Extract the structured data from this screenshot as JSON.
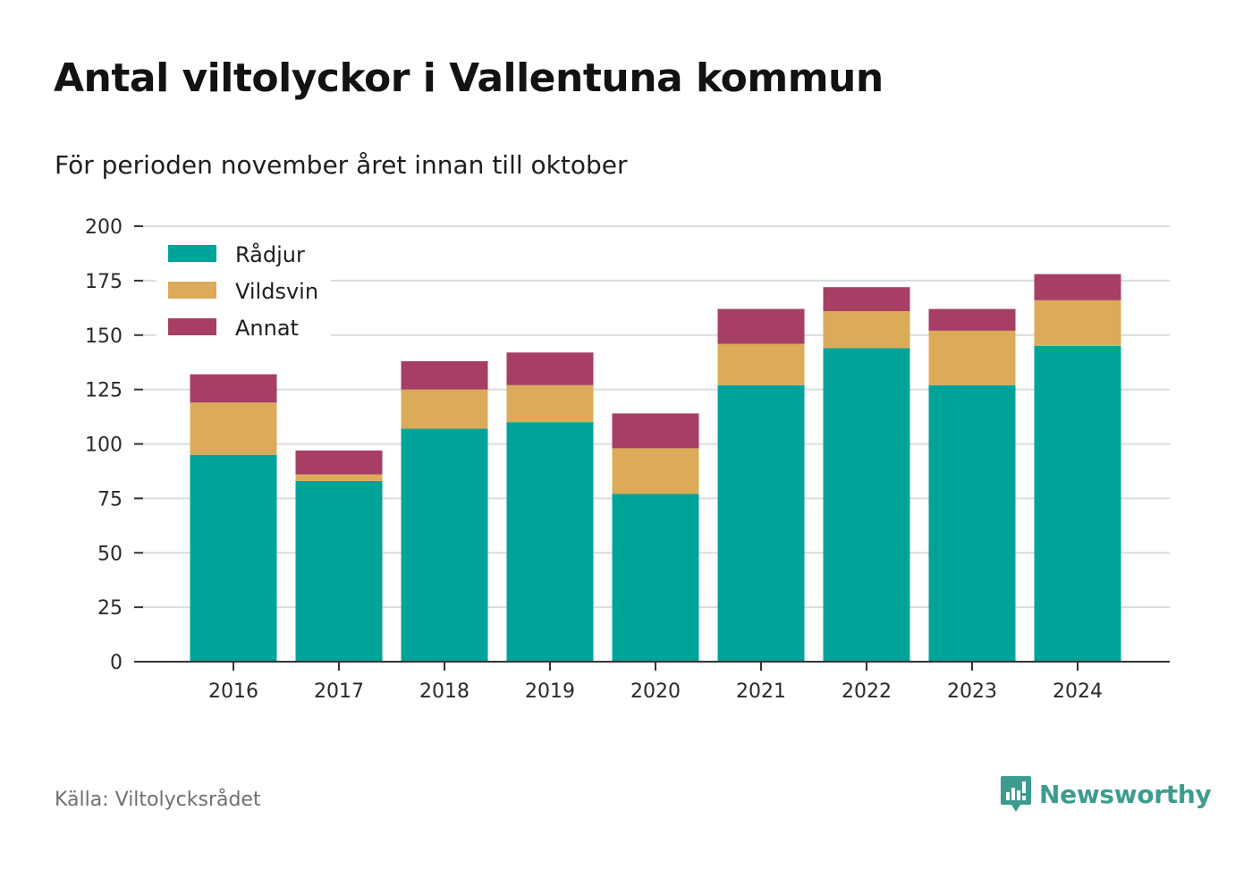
{
  "title": "Antal viltolyckor i Vallentuna kommun",
  "subtitle": "För perioden november året innan till oktober",
  "source": "Källa: Viltolycksrådet",
  "brand": {
    "name": "Newsworthy",
    "logo_icon": "newsworthy-logo-icon",
    "color": "#3d9c8f"
  },
  "chart_data": {
    "type": "bar",
    "stacked": true,
    "categories": [
      "2016",
      "2017",
      "2018",
      "2019",
      "2020",
      "2021",
      "2022",
      "2023",
      "2024"
    ],
    "series": [
      {
        "name": "Rådjur",
        "color": "#00a39a",
        "values": [
          95,
          83,
          107,
          110,
          77,
          127,
          144,
          127,
          145
        ]
      },
      {
        "name": "Vildsvin",
        "color": "#dbab59",
        "values": [
          24,
          3,
          18,
          17,
          21,
          19,
          17,
          25,
          21
        ]
      },
      {
        "name": "Annat",
        "color": "#a63e65",
        "values": [
          13,
          11,
          13,
          15,
          16,
          16,
          11,
          10,
          12
        ]
      }
    ],
    "ylim": [
      0,
      200
    ],
    "yticks": [
      0,
      25,
      50,
      75,
      100,
      125,
      150,
      175,
      200
    ],
    "xlabel": "",
    "ylabel": "",
    "grid": true,
    "legend": "top-left"
  }
}
